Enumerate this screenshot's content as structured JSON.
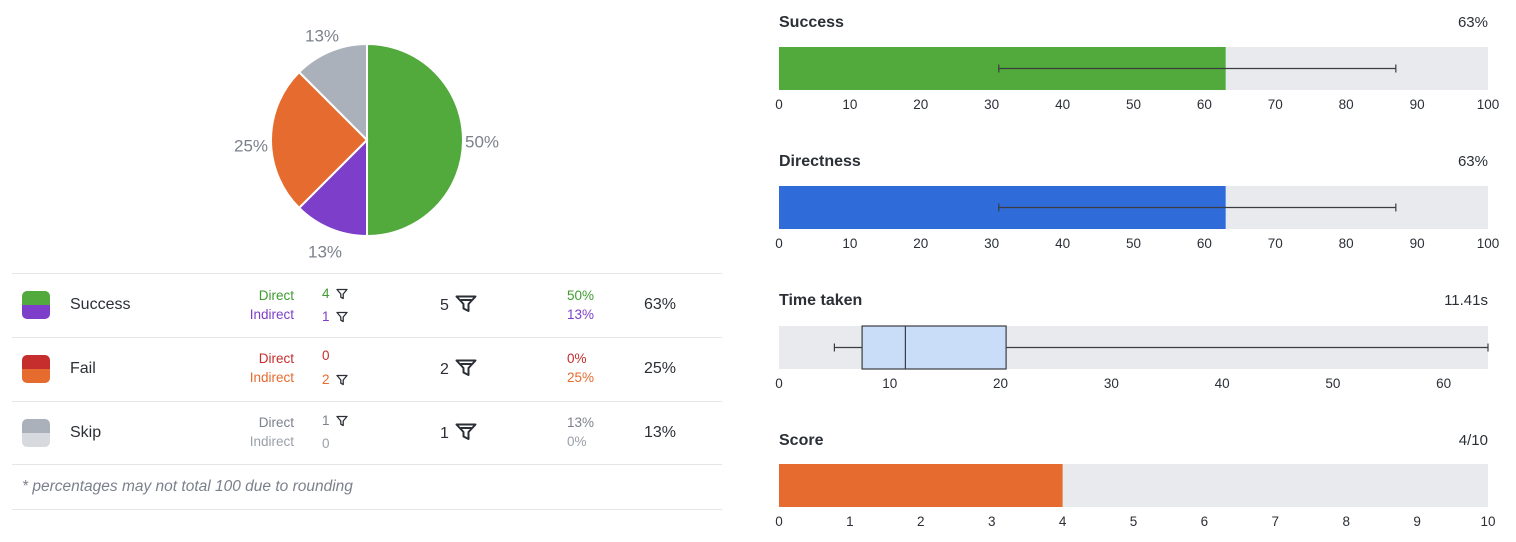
{
  "pie": {
    "slices": [
      {
        "name": "Success Direct",
        "value": 50,
        "label": "50%",
        "color": "#52a93c"
      },
      {
        "name": "Success Indirect",
        "value": 12.5,
        "label": "13%",
        "color": "#7d3fc9"
      },
      {
        "name": "Fail Indirect",
        "value": 25,
        "label": "25%",
        "color": "#e56b2e"
      },
      {
        "name": "Skip Direct",
        "value": 12.5,
        "label": "13%",
        "color": "#aab1bb"
      }
    ]
  },
  "rows": [
    {
      "name": "Success",
      "colors": [
        "#52a93c",
        "#7d3fc9"
      ],
      "direct": {
        "label": "Direct",
        "count": "4",
        "pct": "50%",
        "color": "#3e9b2e",
        "funnel": true
      },
      "indirect": {
        "label": "Indirect",
        "count": "1",
        "pct": "13%",
        "color": "#7d3fc9",
        "funnel": true
      },
      "total": "5",
      "total_pct": "63%"
    },
    {
      "name": "Fail",
      "colors": [
        "#c62d2d",
        "#e56b2e"
      ],
      "direct": {
        "label": "Direct",
        "count": "0",
        "pct": "0%",
        "color": "#c62d2d",
        "funnel": false
      },
      "indirect": {
        "label": "Indirect",
        "count": "2",
        "pct": "25%",
        "color": "#e56b2e",
        "funnel": true
      },
      "total": "2",
      "total_pct": "25%"
    },
    {
      "name": "Skip",
      "colors": [
        "#aab1bb",
        "#d6d9de"
      ],
      "direct": {
        "label": "Direct",
        "count": "1",
        "pct": "13%",
        "color": "#7b818c",
        "funnel": true
      },
      "indirect": {
        "label": "Indirect",
        "count": "0",
        "pct": "0%",
        "color": "#9aa0a9",
        "funnel": false
      },
      "total": "1",
      "total_pct": "13%"
    }
  ],
  "footnote": "* percentages may not total 100 due to rounding",
  "metrics": [
    {
      "title": "Success",
      "value": "63%",
      "type": "bar",
      "fill": 63,
      "error": [
        31,
        87
      ],
      "max": 100,
      "ticks": [
        0,
        10,
        20,
        30,
        40,
        50,
        60,
        70,
        80,
        90,
        100
      ],
      "color": "#52a93c"
    },
    {
      "title": "Directness",
      "value": "63%",
      "type": "bar",
      "fill": 63,
      "error": [
        31,
        87
      ],
      "max": 100,
      "ticks": [
        0,
        10,
        20,
        30,
        40,
        50,
        60,
        70,
        80,
        90,
        100
      ],
      "color": "#2f6bd9"
    },
    {
      "title": "Time taken",
      "value": "11.41s",
      "type": "box",
      "min": 5,
      "q1": 7.5,
      "median": 11.41,
      "q3": 20.5,
      "whisker_max": 64,
      "max": 64,
      "ticks": [
        0,
        10,
        20,
        30,
        40,
        50,
        60
      ],
      "color": "#c9dcf8"
    },
    {
      "title": "Score",
      "value": "4/10",
      "type": "bar",
      "fill": 4,
      "max": 10,
      "ticks": [
        0,
        1,
        2,
        3,
        4,
        5,
        6,
        7,
        8,
        9,
        10
      ],
      "color": "#e56b2e"
    }
  ]
}
